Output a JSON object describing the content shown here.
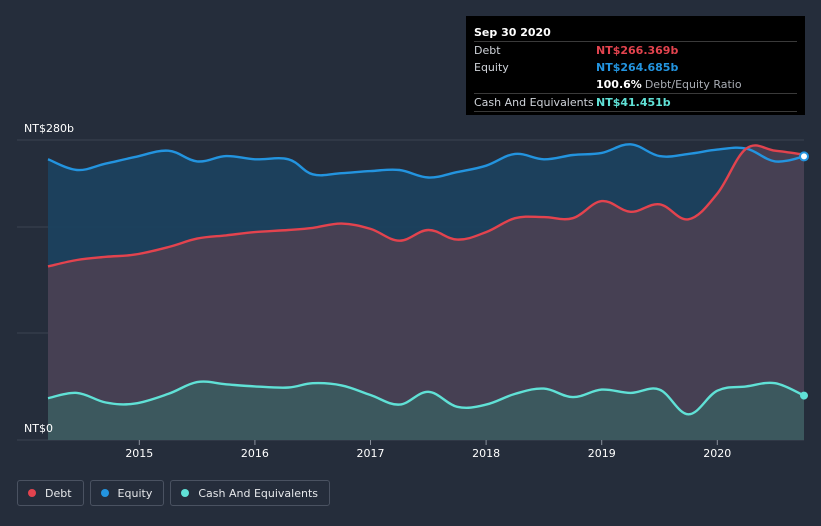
{
  "colors": {
    "debt": "#e3434e",
    "equity": "#2394df",
    "cash": "#60e1d6",
    "debt_fill": "#4a4052",
    "equity_fill": "#1b4260",
    "cash_fill": "#3c5a5f",
    "grid": "#3a4352"
  },
  "tooltip": {
    "date": "Sep 30 2020",
    "rows": [
      {
        "label": "Debt",
        "value": "NT$266.369b",
        "color": "#e3434e",
        "sub": ""
      },
      {
        "label": "Equity",
        "value": "NT$264.685b",
        "color": "#2394df",
        "sub": ""
      },
      {
        "label": "",
        "value": "100.6%",
        "color": "#ffffff",
        "sub": "Debt/Equity Ratio"
      },
      {
        "label": "Cash And Equivalents",
        "value": "NT$41.451b",
        "color": "#60e1d6",
        "sub": ""
      }
    ]
  },
  "legend": [
    {
      "label": "Debt",
      "color": "#e3434e"
    },
    {
      "label": "Equity",
      "color": "#2394df"
    },
    {
      "label": "Cash And Equivalents",
      "color": "#60e1d6"
    }
  ],
  "chart_data": {
    "type": "area",
    "title": "",
    "xlabel": "",
    "ylabel": "",
    "y_tick_labels": [
      "NT$280b",
      "NT$0"
    ],
    "ylim": [
      0,
      280
    ],
    "xlim": [
      2014.21,
      2020.75
    ],
    "x_ticks": [
      2015,
      2016,
      2017,
      2018,
      2019,
      2020
    ],
    "x_tick_labels": [
      "2015",
      "2016",
      "2017",
      "2018",
      "2019",
      "2020"
    ],
    "grid": true,
    "legend_position": "bottom-left",
    "series": [
      {
        "name": "Equity",
        "unit": "NT$b",
        "x": [
          2014.21,
          2014.46,
          2014.71,
          2014.96,
          2015.25,
          2015.5,
          2015.75,
          2016.0,
          2016.29,
          2016.5,
          2016.75,
          2017.0,
          2017.25,
          2017.5,
          2017.75,
          2018.0,
          2018.25,
          2018.5,
          2018.75,
          2019.0,
          2019.25,
          2019.5,
          2019.75,
          2020.0,
          2020.25,
          2020.5,
          2020.75
        ],
        "values": [
          262,
          252,
          258,
          264,
          270,
          260,
          265,
          262,
          262,
          248,
          249,
          251,
          252,
          245,
          250,
          256,
          267,
          262,
          266,
          268,
          276,
          265,
          267,
          271,
          272,
          260,
          264.685
        ]
      },
      {
        "name": "Debt",
        "unit": "NT$b",
        "x": [
          2014.21,
          2014.46,
          2014.71,
          2014.96,
          2015.25,
          2015.5,
          2015.75,
          2016.0,
          2016.29,
          2016.5,
          2016.75,
          2017.0,
          2017.25,
          2017.5,
          2017.75,
          2018.0,
          2018.25,
          2018.5,
          2018.75,
          2019.0,
          2019.25,
          2019.5,
          2019.75,
          2020.0,
          2020.25,
          2020.5,
          2020.75
        ],
        "values": [
          162,
          168,
          171,
          173,
          180,
          188,
          191,
          194,
          196,
          198,
          202,
          197,
          186,
          196,
          187,
          194,
          207,
          208,
          207,
          223,
          213,
          220,
          206,
          230,
          272,
          270,
          266.369
        ]
      },
      {
        "name": "Cash And Equivalents",
        "unit": "NT$b",
        "x": [
          2014.21,
          2014.46,
          2014.71,
          2014.96,
          2015.25,
          2015.5,
          2015.75,
          2016.0,
          2016.29,
          2016.5,
          2016.75,
          2017.0,
          2017.25,
          2017.5,
          2017.75,
          2018.0,
          2018.25,
          2018.5,
          2018.75,
          2019.0,
          2019.25,
          2019.5,
          2019.75,
          2020.0,
          2020.25,
          2020.5,
          2020.75
        ],
        "values": [
          39,
          44,
          35,
          34,
          43,
          54,
          52,
          50,
          49,
          53,
          51,
          42,
          33,
          45,
          31,
          33,
          43,
          48,
          40,
          47,
          44,
          47,
          24,
          46,
          50,
          53,
          41.451
        ]
      }
    ]
  }
}
